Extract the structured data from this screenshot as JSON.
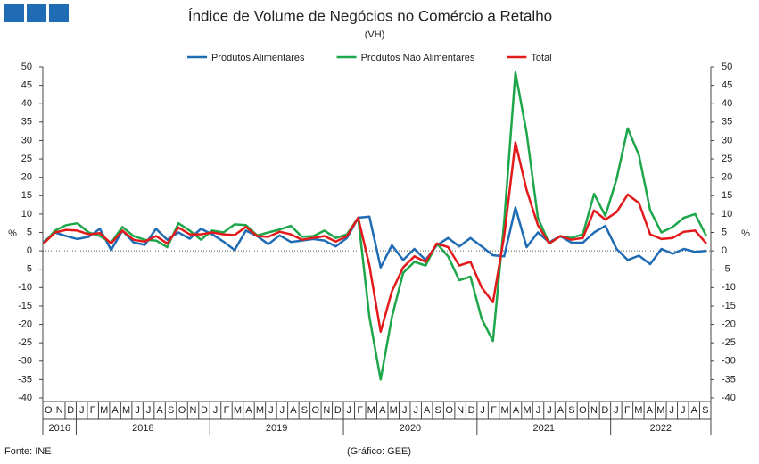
{
  "chart_data": {
    "type": "line",
    "title": "Índice de Volume de Negócios no Comércio a Retalho",
    "subtitle": "(VH)",
    "y_label": "%",
    "source": "Fonte: INE",
    "credit": "(Gráfico: GEE)",
    "categories": [
      "O",
      "N",
      "D",
      "J",
      "F",
      "M",
      "A",
      "M",
      "J",
      "J",
      "A",
      "S",
      "O",
      "N",
      "D",
      "J",
      "F",
      "M",
      "A",
      "M",
      "J",
      "J",
      "A",
      "S",
      "O",
      "N",
      "D",
      "J",
      "F",
      "M",
      "A",
      "M",
      "J",
      "J",
      "A",
      "S",
      "O",
      "N",
      "D",
      "J",
      "F",
      "M",
      "A",
      "M",
      "J",
      "J",
      "A",
      "S",
      "O",
      "N",
      "D",
      "J",
      "F",
      "M",
      "A",
      "M",
      "J",
      "J",
      "A",
      "S"
    ],
    "years": [
      "2016",
      "2018",
      "2019",
      "2020",
      "2021",
      "2022"
    ],
    "series": [
      {
        "name": "Produtos Alimentares",
        "color": "#1f6cb4",
        "values": [
          2.4,
          5,
          4,
          3.2,
          3.8,
          6,
          0.2,
          5.5,
          2.3,
          1.6,
          6,
          3,
          5,
          3.3,
          6,
          4.5,
          2.5,
          0.2,
          5.5,
          4,
          1.8,
          4.2,
          2.4,
          2.8,
          3.2,
          2.8,
          1.2,
          3.5,
          9,
          9.3,
          -4.5,
          1.5,
          -2.5,
          0.5,
          -2.5,
          1.5,
          3.5,
          1.2,
          3.5,
          1.2,
          -1.2,
          -1.5,
          11.8,
          1,
          5,
          2.3,
          4,
          2.2,
          2.2,
          5,
          6.8,
          0.5,
          -2.5,
          -1.3,
          -3.6,
          0.5,
          -0.8,
          0.5,
          -0.3,
          0
        ]
      },
      {
        "name": "Produtos Não Alimentares",
        "color": "#1ea64a",
        "values": [
          2,
          5.5,
          7,
          7.5,
          5,
          4,
          2.2,
          6.5,
          4,
          3,
          2.8,
          1,
          7.5,
          5.5,
          3,
          5.5,
          5,
          7.2,
          7,
          4.2,
          5,
          5.8,
          6.8,
          3.8,
          4,
          5.5,
          3.5,
          4.5,
          9,
          -18,
          -35,
          -18,
          -6,
          -3,
          -4,
          2,
          -1.5,
          -8,
          -7,
          -18.5,
          -24.5,
          8,
          48.5,
          32,
          9,
          2,
          4,
          3.5,
          4.5,
          15.5,
          9.5,
          19.5,
          33.3,
          26,
          11,
          5,
          6.5,
          9,
          10,
          4
        ]
      },
      {
        "name": "Total",
        "color": "#e31a1c",
        "values": [
          2,
          5,
          5.7,
          5.5,
          4.5,
          4.8,
          2,
          5.5,
          3,
          2.5,
          4,
          2,
          6.3,
          4.5,
          4.5,
          5,
          4.5,
          4.3,
          6.5,
          4,
          3.8,
          5.2,
          4.5,
          3,
          3.5,
          4,
          2.5,
          4,
          9,
          -4,
          -22,
          -11,
          -4.5,
          -1.5,
          -3,
          2,
          1,
          -4,
          -3,
          -10,
          -14,
          4,
          29.5,
          16.5,
          7,
          2,
          4,
          3,
          3.5,
          11,
          8.5,
          10.5,
          15.3,
          13,
          4.5,
          3.2,
          3.5,
          5.2,
          5.5,
          2
        ]
      }
    ],
    "ylim": [
      -40,
      50
    ],
    "yticks": [
      -40,
      -35,
      -30,
      -25,
      -20,
      -15,
      -10,
      -5,
      0,
      5,
      10,
      15,
      20,
      25,
      30,
      35,
      40,
      45,
      50
    ]
  }
}
